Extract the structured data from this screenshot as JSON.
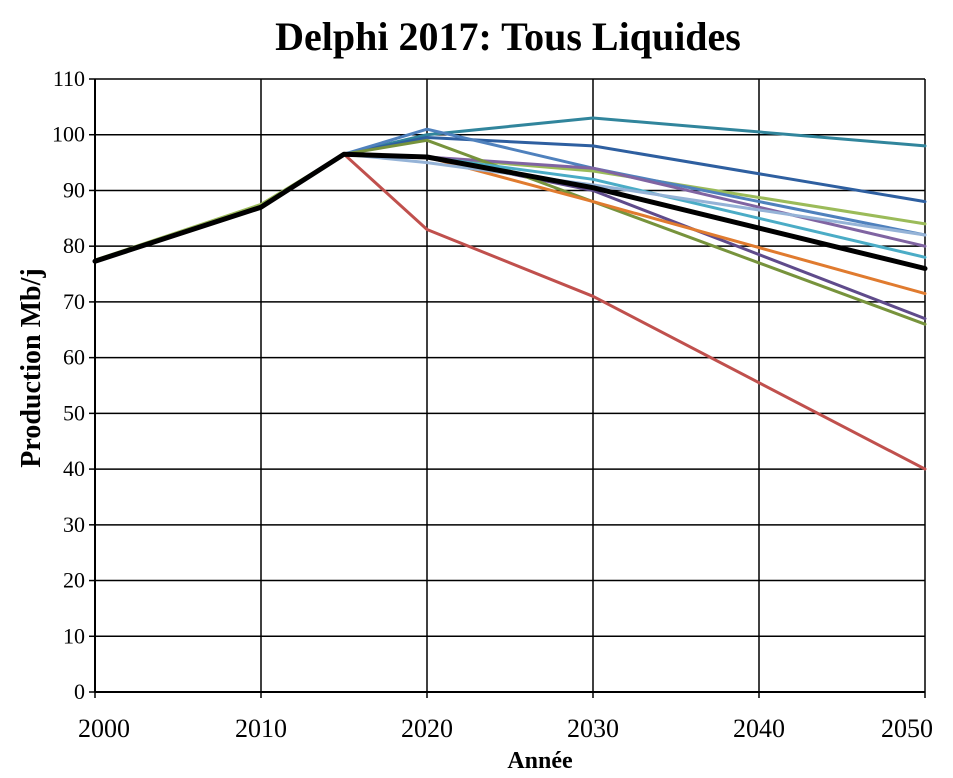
{
  "chart_data": {
    "type": "line",
    "title": "Delphi 2017: Tous Liquides",
    "xlabel": "Année",
    "ylabel": "Production Mb/j",
    "xlim": [
      2000,
      2050
    ],
    "ylim": [
      0,
      110
    ],
    "x_ticks": [
      2000,
      2010,
      2020,
      2030,
      2040,
      2050
    ],
    "y_ticks": [
      0,
      10,
      20,
      30,
      40,
      50,
      60,
      70,
      80,
      90,
      100,
      110
    ],
    "grid": true,
    "legend": "none",
    "series": [
      {
        "color": "#9bbb59",
        "points": [
          [
            2000,
            77.5
          ],
          [
            2010,
            87.5
          ],
          [
            2015,
            96.5
          ],
          [
            2020,
            96
          ],
          [
            2030,
            93.5
          ],
          [
            2050,
            84
          ]
        ]
      },
      {
        "color": "#c0504d",
        "points": [
          [
            2015,
            96.5
          ],
          [
            2020,
            83
          ],
          [
            2030,
            71
          ],
          [
            2050,
            40
          ]
        ]
      },
      {
        "color": "#31859c",
        "points": [
          [
            2015,
            96.5
          ],
          [
            2020,
            100
          ],
          [
            2030,
            103
          ],
          [
            2050,
            98
          ]
        ]
      },
      {
        "color": "#2e5fa0",
        "points": [
          [
            2015,
            96.5
          ],
          [
            2020,
            99.5
          ],
          [
            2030,
            98
          ],
          [
            2050,
            88
          ]
        ]
      },
      {
        "color": "#4f81bd",
        "points": [
          [
            2015,
            96.5
          ],
          [
            2020,
            101
          ],
          [
            2030,
            94
          ],
          [
            2050,
            82
          ]
        ]
      },
      {
        "color": "#8064a2",
        "points": [
          [
            2015,
            96.5
          ],
          [
            2020,
            96
          ],
          [
            2030,
            94
          ],
          [
            2050,
            80
          ]
        ]
      },
      {
        "color": "#5f4b8b",
        "points": [
          [
            2015,
            96.5
          ],
          [
            2020,
            96
          ],
          [
            2030,
            90
          ],
          [
            2050,
            67
          ]
        ]
      },
      {
        "color": "#77933c",
        "points": [
          [
            2015,
            96.5
          ],
          [
            2020,
            99
          ],
          [
            2030,
            88
          ],
          [
            2050,
            66
          ]
        ]
      },
      {
        "color": "#e07b2f",
        "points": [
          [
            2015,
            96.5
          ],
          [
            2020,
            96
          ],
          [
            2030,
            88
          ],
          [
            2050,
            71.5
          ]
        ]
      },
      {
        "color": "#4bacc6",
        "points": [
          [
            2015,
            96.5
          ],
          [
            2020,
            96
          ],
          [
            2030,
            92
          ],
          [
            2050,
            78
          ]
        ]
      },
      {
        "color": "#95b3d7",
        "points": [
          [
            2015,
            96.5
          ],
          [
            2020,
            95
          ],
          [
            2030,
            91
          ],
          [
            2050,
            82
          ]
        ]
      },
      {
        "color": "#000000",
        "width": 5,
        "points": [
          [
            2000,
            77.3
          ],
          [
            2010,
            87
          ],
          [
            2015,
            96.5
          ],
          [
            2020,
            96
          ],
          [
            2030,
            90.5
          ],
          [
            2050,
            76
          ]
        ]
      }
    ]
  }
}
